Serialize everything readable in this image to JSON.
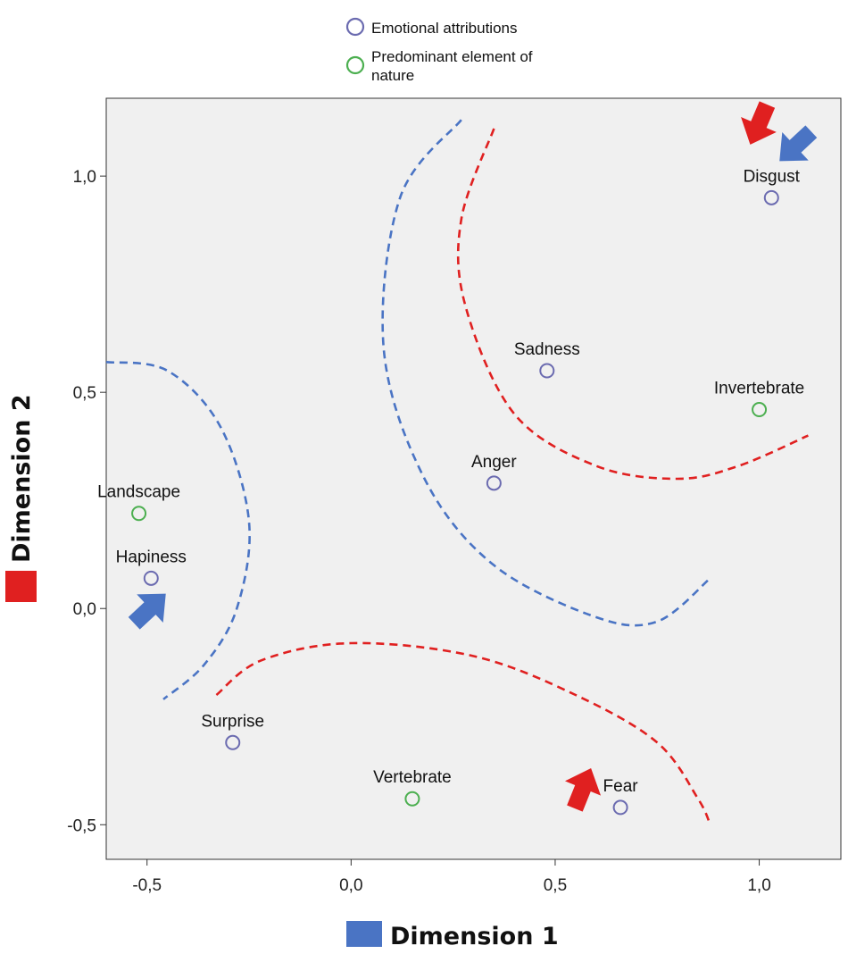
{
  "chart_data": {
    "type": "scatter",
    "xlabel": "Dimension 1",
    "ylabel": "Dimension 2",
    "xlim": [
      -0.6,
      1.2
    ],
    "ylim": [
      -0.58,
      1.18
    ],
    "xticks": [
      "-0,5",
      "0,0",
      "0,5",
      "1,0"
    ],
    "xtick_values": [
      -0.5,
      0.0,
      0.5,
      1.0
    ],
    "yticks": [
      "-0,5",
      "0,0",
      "0,5",
      "1,0"
    ],
    "ytick_values": [
      -0.5,
      0.0,
      0.5,
      1.0
    ],
    "grid": false,
    "legend_position": "top-center",
    "legend": [
      {
        "name": "Emotional attributions",
        "color": "#6b6bb0"
      },
      {
        "name": "Predominant element of nature",
        "color": "#4caf50"
      }
    ],
    "series": [
      {
        "name": "Emotional attributions",
        "color": "#6b6bb0",
        "points": [
          {
            "label": "Disgust",
            "x": 1.03,
            "y": 0.95
          },
          {
            "label": "Sadness",
            "x": 0.48,
            "y": 0.55
          },
          {
            "label": "Anger",
            "x": 0.35,
            "y": 0.29
          },
          {
            "label": "Hapiness",
            "x": -0.49,
            "y": 0.07
          },
          {
            "label": "Surprise",
            "x": -0.29,
            "y": -0.31
          },
          {
            "label": "Fear",
            "x": 0.66,
            "y": -0.46
          }
        ]
      },
      {
        "name": "Predominant element of nature",
        "color": "#4caf50",
        "points": [
          {
            "label": "Invertebrate",
            "x": 1.0,
            "y": 0.46
          },
          {
            "label": "Landscape",
            "x": -0.52,
            "y": 0.22
          },
          {
            "label": "Vertebrate",
            "x": 0.15,
            "y": -0.44
          }
        ]
      }
    ],
    "annotations": {
      "dimension_colors": {
        "dimension_1": "#4a74c4",
        "dimension_2": "#e02020"
      },
      "arrows": [
        {
          "color": "#e02020",
          "near": "Disgust"
        },
        {
          "color": "#4a74c4",
          "near": "Disgust"
        },
        {
          "color": "#4a74c4",
          "near": "Hapiness"
        },
        {
          "color": "#e02020",
          "near": "Fear"
        }
      ],
      "dashed_curves": [
        {
          "color": "#4a74c4",
          "points": [
            [
              0.27,
              1.13
            ],
            [
              0.12,
              0.95
            ],
            [
              0.08,
              0.6
            ],
            [
              0.18,
              0.3
            ],
            [
              0.35,
              0.1
            ],
            [
              0.6,
              -0.02
            ],
            [
              0.75,
              -0.03
            ],
            [
              0.88,
              0.07
            ]
          ]
        },
        {
          "color": "#e02020",
          "points": [
            [
              0.35,
              1.11
            ],
            [
              0.27,
              0.9
            ],
            [
              0.28,
              0.7
            ],
            [
              0.4,
              0.45
            ],
            [
              0.6,
              0.33
            ],
            [
              0.8,
              0.3
            ],
            [
              0.95,
              0.33
            ],
            [
              1.12,
              0.4
            ]
          ]
        },
        {
          "color": "#4a74c4",
          "points": [
            [
              -0.6,
              0.57
            ],
            [
              -0.45,
              0.55
            ],
            [
              -0.32,
              0.42
            ],
            [
              -0.25,
              0.2
            ],
            [
              -0.28,
              0.0
            ],
            [
              -0.36,
              -0.13
            ],
            [
              -0.46,
              -0.21
            ]
          ]
        },
        {
          "color": "#e02020",
          "points": [
            [
              -0.33,
              -0.2
            ],
            [
              -0.22,
              -0.12
            ],
            [
              0.0,
              -0.08
            ],
            [
              0.3,
              -0.11
            ],
            [
              0.55,
              -0.2
            ],
            [
              0.75,
              -0.31
            ],
            [
              0.85,
              -0.44
            ],
            [
              0.88,
              -0.5
            ]
          ]
        }
      ]
    }
  }
}
